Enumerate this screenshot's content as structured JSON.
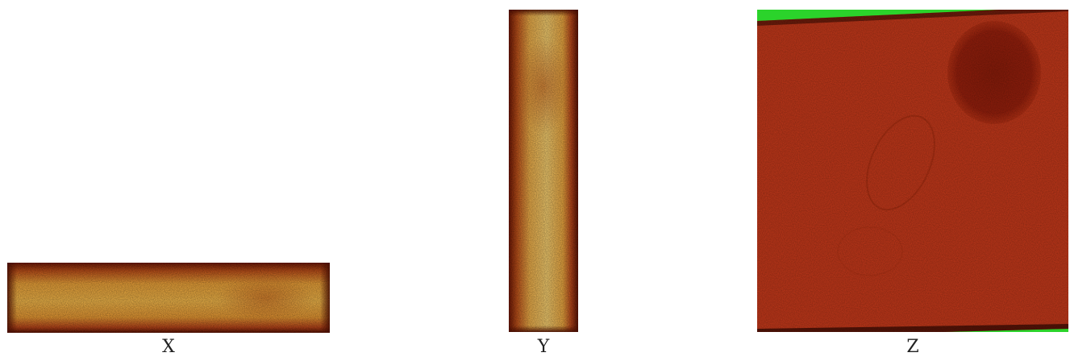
{
  "figures": [
    {
      "caption": "X"
    },
    {
      "caption": "Y"
    },
    {
      "caption": "Z"
    }
  ],
  "colors": {
    "background": "#ffffff",
    "bright_core": "#f6c65a",
    "mid_orange": "#e08a2a",
    "dark_edge": "#7a1c06",
    "red_field": "#c0361a",
    "dark_blob": "#8e1e0c",
    "corner_green": "#2bd32b"
  }
}
